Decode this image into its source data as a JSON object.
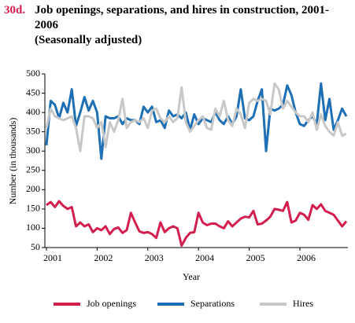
{
  "chart_data": {
    "type": "line",
    "label": "30d.",
    "title": "Job openings, separations, and hires in construction, 2001-2006",
    "subtitle": "(Seasonally adjusted)",
    "x_label": "Year",
    "y_label": "Number (in thousands)",
    "categories": [
      "2001",
      null,
      null,
      null,
      null,
      null,
      null,
      null,
      null,
      null,
      null,
      null,
      "2002",
      null,
      null,
      null,
      null,
      null,
      null,
      null,
      null,
      null,
      null,
      null,
      "2003",
      null,
      null,
      null,
      null,
      null,
      null,
      null,
      null,
      null,
      null,
      null,
      "2004",
      null,
      null,
      null,
      null,
      null,
      null,
      null,
      null,
      null,
      null,
      null,
      "2005",
      null,
      null,
      null,
      null,
      null,
      null,
      null,
      null,
      null,
      null,
      null,
      "2006",
      null,
      null,
      null,
      null,
      null,
      null,
      null,
      null,
      null,
      null,
      null
    ],
    "ylim": [
      50,
      500
    ],
    "yticks": [
      50,
      100,
      150,
      200,
      250,
      300,
      350,
      400,
      450,
      500
    ],
    "grid": false,
    "legend": "bottom",
    "series": [
      {
        "name": "Job openings",
        "color": "#d21f4e",
        "values": [
          160,
          168,
          155,
          170,
          158,
          150,
          155,
          105,
          115,
          105,
          110,
          90,
          100,
          95,
          105,
          85,
          98,
          102,
          88,
          95,
          140,
          115,
          92,
          88,
          90,
          85,
          75,
          115,
          90,
          100,
          105,
          100,
          55,
          75,
          88,
          90,
          140,
          115,
          108,
          112,
          112,
          105,
          100,
          118,
          105,
          115,
          125,
          130,
          128,
          145,
          110,
          112,
          120,
          130,
          150,
          148,
          145,
          168,
          115,
          120,
          140,
          135,
          122,
          160,
          150,
          162,
          145,
          140,
          135,
          120,
          105,
          118
        ]
      },
      {
        "name": "Separations",
        "color": "#1f6fb5",
        "values": [
          315,
          430,
          420,
          385,
          425,
          400,
          460,
          365,
          400,
          440,
          405,
          430,
          400,
          280,
          390,
          385,
          385,
          390,
          370,
          385,
          380,
          380,
          370,
          415,
          400,
          415,
          375,
          380,
          360,
          405,
          390,
          395,
          385,
          400,
          355,
          395,
          370,
          385,
          380,
          375,
          400,
          380,
          370,
          390,
          370,
          390,
          460,
          385,
          380,
          390,
          430,
          460,
          300,
          410,
          405,
          410,
          420,
          470,
          445,
          400,
          370,
          365,
          380,
          390,
          370,
          475,
          380,
          435,
          355,
          380,
          410,
          390
        ]
      },
      {
        "name": "Hires",
        "color": "#c8c8c8",
        "values": [
          360,
          410,
          390,
          385,
          380,
          385,
          390,
          360,
          300,
          390,
          390,
          385,
          360,
          375,
          310,
          375,
          350,
          380,
          435,
          360,
          375,
          380,
          375,
          385,
          360,
          405,
          410,
          385,
          375,
          390,
          375,
          385,
          465,
          375,
          350,
          365,
          380,
          390,
          360,
          355,
          410,
          390,
          430,
          380,
          365,
          410,
          395,
          360,
          425,
          435,
          430,
          435,
          430,
          395,
          475,
          460,
          410,
          430,
          415,
          400,
          390,
          390,
          375,
          400,
          355,
          395,
          365,
          350,
          340,
          375,
          340,
          345
        ]
      }
    ]
  }
}
